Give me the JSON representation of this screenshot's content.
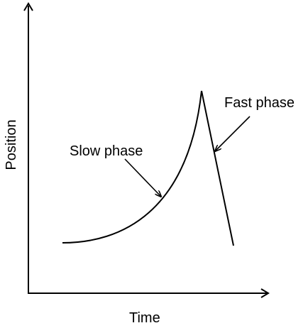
{
  "axes": {
    "x_label": "Time",
    "y_label": "Position"
  },
  "annotations": {
    "slow_phase": "Slow phase",
    "fast_phase": "Fast phase"
  },
  "colors": {
    "stroke": "#000000",
    "background": "#ffffff"
  }
}
